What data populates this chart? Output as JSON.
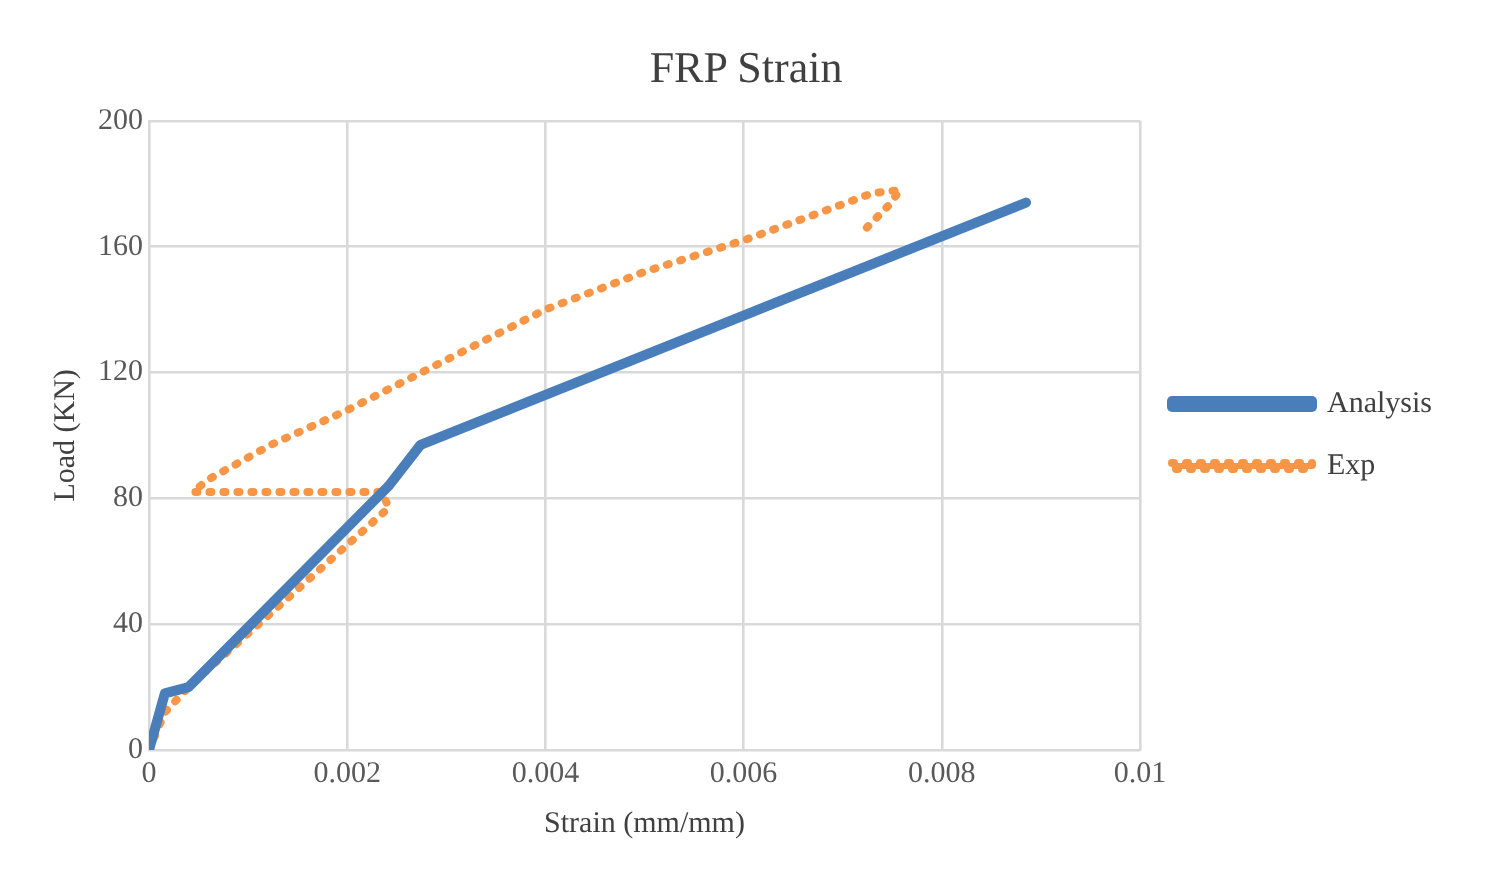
{
  "chart_data": {
    "type": "line",
    "title": "FRP Strain",
    "xlabel": "Strain (mm/mm)",
    "ylabel": "Load (KN)",
    "xlim": [
      0,
      0.01
    ],
    "xticks": [
      0,
      0.002,
      0.004,
      0.006,
      0.008,
      0.01
    ],
    "ylim": [
      0,
      200
    ],
    "yticks": [
      0,
      40,
      80,
      120,
      160,
      200
    ],
    "grid": true,
    "legend": "right",
    "marker": "none",
    "series": [
      {
        "name": "Analysis",
        "color": "#4a7ebb",
        "line_style": "solid",
        "x": [
          0,
          0.00016,
          0.0004,
          0.00242,
          0.00274,
          0.00885
        ],
        "values": [
          0,
          18,
          20,
          84,
          97,
          174
        ]
      },
      {
        "name": "Exp",
        "color": "#f79646",
        "line_style": "dotted",
        "x": [
          0,
          0.00016,
          0.00043,
          0.00242,
          0.00235,
          0.00044,
          0.0006,
          0.00123,
          0.002,
          0.003,
          0.004,
          0.005,
          0.006,
          0.0067,
          0.0073,
          0.00758,
          0.00746,
          0.00718
        ],
        "values": [
          0,
          12,
          21,
          77,
          82,
          82,
          86,
          97,
          108,
          124,
          140,
          152,
          162,
          170,
          177,
          178,
          173,
          164
        ]
      }
    ]
  }
}
